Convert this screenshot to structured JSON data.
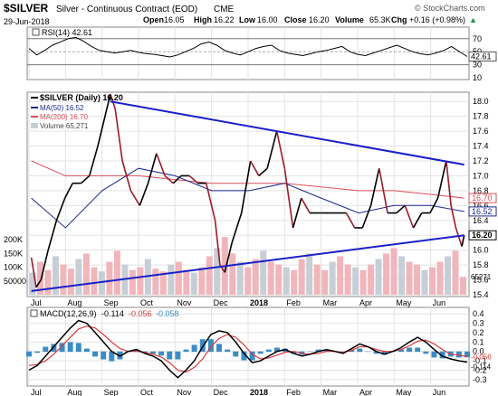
{
  "header": {
    "symbol": "$SILVER",
    "name": "Silver - Continuous Contract (EOD)",
    "exchange": "CME",
    "date": "29-Jun-2018",
    "watermark": "© StockCharts.com",
    "quote": {
      "open_label": "Open",
      "open": "16.05",
      "high_label": "High",
      "high": "16.22",
      "low_label": "Low",
      "low": "16.00",
      "close_label": "Close",
      "close": "16.20",
      "volume_label": "Volume",
      "volume": "65.3K",
      "chg_label": "Chg",
      "chg": "+0.16 (+0.98%)",
      "chg_arrow": "▲"
    }
  },
  "colors": {
    "price_up": "#000000",
    "price_down": "#9b1b2c",
    "ma50": "#1c2a8c",
    "ma200": "#d9505a",
    "trendline": "#1a1fc8",
    "volume_up": "#f0b6bb",
    "volume_down": "#c8ced6",
    "macd_hist": "#3b8cc4",
    "macd_signal": "#d83a3a",
    "rsi_line": "#000000",
    "grid": "#e3e3e3",
    "close_flag": "#000000"
  },
  "rsi_panel": {
    "label": "RSI(14) 42.61",
    "current_tag": "42.61",
    "y_ticks": [
      "70",
      "50",
      "30",
      "10"
    ]
  },
  "price_panel": {
    "legend": [
      {
        "text": "$SILVER (Daily) 16.20",
        "key": "price"
      },
      {
        "text": "MA(50) 16.52",
        "key": "ma50"
      },
      {
        "text": "MA(200) 16.70",
        "key": "ma200"
      },
      {
        "text": "Volume 65,271",
        "key": "volume"
      }
    ],
    "y_ticks": [
      "18.0",
      "17.8",
      "17.6",
      "17.4",
      "17.2",
      "17.0",
      "16.8",
      "16.6",
      "16.4",
      "16.2",
      "16.0",
      "15.8",
      "15.6",
      "15.4"
    ],
    "price_tags": {
      "ma200": "16.70",
      "ma50": "16.52",
      "close": "16.20"
    },
    "volume_ticks": [
      "200K",
      "150K",
      "100K",
      "50000"
    ],
    "volume_tag": "65271"
  },
  "macd_panel": {
    "label_prefix": "MACD(12,26,9)",
    "label_values": [
      "-0.114",
      "-0.056",
      "-0.058"
    ],
    "y_ticks": [
      "0.4",
      "0.3",
      "0.2",
      "0.1",
      "0.0",
      "-0.1",
      "-0.2",
      "-0.3"
    ],
    "current_tags": [
      "-0.056",
      "-0.114"
    ]
  },
  "x_axis_labels": [
    "Jul",
    "Aug",
    "Sep",
    "Oct",
    "Nov",
    "Dec",
    "2018",
    "Feb",
    "Mar",
    "Apr",
    "May",
    "Jun"
  ],
  "chart_data": {
    "type": "line",
    "title": "$SILVER Silver - Continuous Contract (EOD) CME",
    "x_range": [
      "2017-07",
      "2018-06-29"
    ],
    "x_categories": [
      "Jul",
      "Aug",
      "Sep",
      "Oct",
      "Nov",
      "Dec",
      "2018",
      "Feb",
      "Mar",
      "Apr",
      "May",
      "Jun"
    ],
    "ylim_price": [
      15.4,
      18.1
    ],
    "price_series": [
      {
        "x": "Jul-03",
        "y": 15.9
      },
      {
        "x": "Jul-07",
        "y": 15.5
      },
      {
        "x": "Jul-11",
        "y": 15.6
      },
      {
        "x": "Jul-17",
        "y": 16.0
      },
      {
        "x": "Jul-24",
        "y": 16.4
      },
      {
        "x": "Jul-31",
        "y": 16.7
      },
      {
        "x": "Aug-07",
        "y": 16.9
      },
      {
        "x": "Aug-14",
        "y": 16.9
      },
      {
        "x": "Aug-21",
        "y": 17.0
      },
      {
        "x": "Aug-28",
        "y": 17.4
      },
      {
        "x": "Sep-05",
        "y": 17.9
      },
      {
        "x": "Sep-08",
        "y": 18.1
      },
      {
        "x": "Sep-12",
        "y": 17.9
      },
      {
        "x": "Sep-18",
        "y": 17.2
      },
      {
        "x": "Sep-25",
        "y": 16.8
      },
      {
        "x": "Oct-02",
        "y": 16.6
      },
      {
        "x": "Oct-09",
        "y": 16.9
      },
      {
        "x": "Oct-16",
        "y": 17.3
      },
      {
        "x": "Oct-23",
        "y": 17.0
      },
      {
        "x": "Oct-30",
        "y": 16.9
      },
      {
        "x": "Nov-06",
        "y": 17.0
      },
      {
        "x": "Nov-13",
        "y": 17.0
      },
      {
        "x": "Nov-20",
        "y": 16.9
      },
      {
        "x": "Nov-27",
        "y": 16.9
      },
      {
        "x": "Dec-04",
        "y": 16.4
      },
      {
        "x": "Dec-08",
        "y": 15.8
      },
      {
        "x": "Dec-12",
        "y": 15.7
      },
      {
        "x": "Dec-18",
        "y": 16.1
      },
      {
        "x": "Dec-26",
        "y": 16.5
      },
      {
        "x": "Jan-03",
        "y": 17.2
      },
      {
        "x": "Jan-10",
        "y": 17.0
      },
      {
        "x": "Jan-17",
        "y": 17.1
      },
      {
        "x": "Jan-25",
        "y": 17.6
      },
      {
        "x": "Feb-01",
        "y": 17.1
      },
      {
        "x": "Feb-08",
        "y": 16.3
      },
      {
        "x": "Feb-15",
        "y": 16.7
      },
      {
        "x": "Feb-22",
        "y": 16.5
      },
      {
        "x": "Mar-01",
        "y": 16.5
      },
      {
        "x": "Mar-08",
        "y": 16.5
      },
      {
        "x": "Mar-15",
        "y": 16.5
      },
      {
        "x": "Mar-22",
        "y": 16.5
      },
      {
        "x": "Mar-29",
        "y": 16.3
      },
      {
        "x": "Apr-05",
        "y": 16.3
      },
      {
        "x": "Apr-12",
        "y": 16.6
      },
      {
        "x": "Apr-19",
        "y": 17.1
      },
      {
        "x": "Apr-26",
        "y": 16.5
      },
      {
        "x": "May-03",
        "y": 16.5
      },
      {
        "x": "May-10",
        "y": 16.6
      },
      {
        "x": "May-17",
        "y": 16.3
      },
      {
        "x": "May-24",
        "y": 16.5
      },
      {
        "x": "May-31",
        "y": 16.5
      },
      {
        "x": "Jun-07",
        "y": 16.7
      },
      {
        "x": "Jun-14",
        "y": 17.2
      },
      {
        "x": "Jun-18",
        "y": 16.6
      },
      {
        "x": "Jun-22",
        "y": 16.3
      },
      {
        "x": "Jun-27",
        "y": 16.05
      },
      {
        "x": "Jun-29",
        "y": 16.2
      }
    ],
    "ma50_series": [
      {
        "x": "Jul-03",
        "y": 16.7
      },
      {
        "x": "Aug-01",
        "y": 16.3
      },
      {
        "x": "Sep-01",
        "y": 16.8
      },
      {
        "x": "Oct-01",
        "y": 17.1
      },
      {
        "x": "Nov-01",
        "y": 17.0
      },
      {
        "x": "Dec-01",
        "y": 16.8
      },
      {
        "x": "Jan-02",
        "y": 16.8
      },
      {
        "x": "Feb-01",
        "y": 16.9
      },
      {
        "x": "Mar-01",
        "y": 16.7
      },
      {
        "x": "Apr-02",
        "y": 16.5
      },
      {
        "x": "May-01",
        "y": 16.6
      },
      {
        "x": "Jun-01",
        "y": 16.6
      },
      {
        "x": "Jun-29",
        "y": 16.52
      }
    ],
    "ma200_series": [
      {
        "x": "Jul-03",
        "y": 17.2
      },
      {
        "x": "Aug-01",
        "y": 17.0
      },
      {
        "x": "Sep-01",
        "y": 17.0
      },
      {
        "x": "Oct-01",
        "y": 17.0
      },
      {
        "x": "Nov-01",
        "y": 16.95
      },
      {
        "x": "Dec-01",
        "y": 16.9
      },
      {
        "x": "Jan-02",
        "y": 16.9
      },
      {
        "x": "Feb-01",
        "y": 16.9
      },
      {
        "x": "Mar-01",
        "y": 16.85
      },
      {
        "x": "Apr-02",
        "y": 16.8
      },
      {
        "x": "May-01",
        "y": 16.8
      },
      {
        "x": "Jun-01",
        "y": 16.75
      },
      {
        "x": "Jun-29",
        "y": 16.7
      }
    ],
    "trendlines": [
      {
        "name": "upper",
        "from": {
          "x": "Sep-08",
          "y": 18.0
        },
        "to": {
          "x": "Jun-29",
          "y": 17.15
        }
      },
      {
        "name": "lower",
        "from": {
          "x": "Jul-03",
          "y": 15.45
        },
        "to": {
          "x": "Jun-29",
          "y": 16.2
        }
      }
    ],
    "volume_series": [
      80,
      120,
      90,
      140,
      110,
      95,
      130,
      150,
      100,
      85,
      120,
      160,
      110,
      90,
      100,
      130,
      95,
      85,
      110,
      120,
      90,
      80,
      100,
      140,
      170,
      210,
      150,
      120,
      100,
      130,
      160,
      120,
      110,
      100,
      90,
      130,
      150,
      110,
      90,
      120,
      140,
      110,
      100,
      90,
      110,
      130,
      150,
      170,
      140,
      120,
      110,
      90,
      100,
      120,
      140,
      160,
      65
    ],
    "volume_ylim": [
      0,
      250000
    ],
    "rsi_series": [
      55,
      45,
      52,
      60,
      65,
      70,
      72,
      66,
      58,
      52,
      50,
      48,
      50,
      52,
      49,
      47,
      46,
      44,
      42,
      45,
      50,
      55,
      62,
      65,
      60,
      52,
      48,
      45,
      50,
      55,
      58,
      60,
      52,
      48,
      46,
      44,
      47,
      50,
      52,
      55,
      58,
      50,
      46,
      44,
      48,
      52,
      56,
      60,
      55,
      50,
      47,
      45,
      48,
      52,
      58,
      50,
      42.61
    ],
    "rsi_ylim": [
      10,
      85
    ],
    "macd_series": [
      -0.2,
      -0.15,
      -0.05,
      0.05,
      0.15,
      0.25,
      0.33,
      0.3,
      0.2,
      0.1,
      0.0,
      -0.05,
      0.0,
      0.02,
      -0.02,
      -0.05,
      -0.1,
      -0.2,
      -0.28,
      -0.2,
      -0.1,
      0.05,
      0.18,
      0.22,
      0.2,
      0.1,
      -0.02,
      -0.12,
      -0.1,
      -0.05,
      0.0,
      0.02,
      -0.02,
      -0.05,
      -0.03,
      0.0,
      0.02,
      0.0,
      -0.02,
      0.03,
      0.08,
      0.05,
      0.0,
      -0.03,
      0.0,
      0.04,
      0.1,
      0.15,
      0.1,
      0.02,
      -0.05,
      -0.08,
      -0.1,
      -0.114
    ],
    "macd_signal_series": [
      -0.15,
      -0.14,
      -0.1,
      -0.03,
      0.06,
      0.15,
      0.24,
      0.27,
      0.25,
      0.18,
      0.1,
      0.03,
      0.0,
      0.0,
      -0.01,
      -0.03,
      -0.06,
      -0.12,
      -0.2,
      -0.22,
      -0.17,
      -0.08,
      0.05,
      0.14,
      0.18,
      0.15,
      0.07,
      -0.03,
      -0.08,
      -0.07,
      -0.04,
      -0.01,
      0.0,
      -0.02,
      -0.03,
      -0.02,
      0.0,
      0.0,
      -0.01,
      0.01,
      0.05,
      0.05,
      0.02,
      0.0,
      0.0,
      0.02,
      0.06,
      0.11,
      0.12,
      0.08,
      0.02,
      -0.03,
      -0.04,
      -0.056
    ],
    "macd_ylim": [
      -0.35,
      0.45
    ]
  }
}
